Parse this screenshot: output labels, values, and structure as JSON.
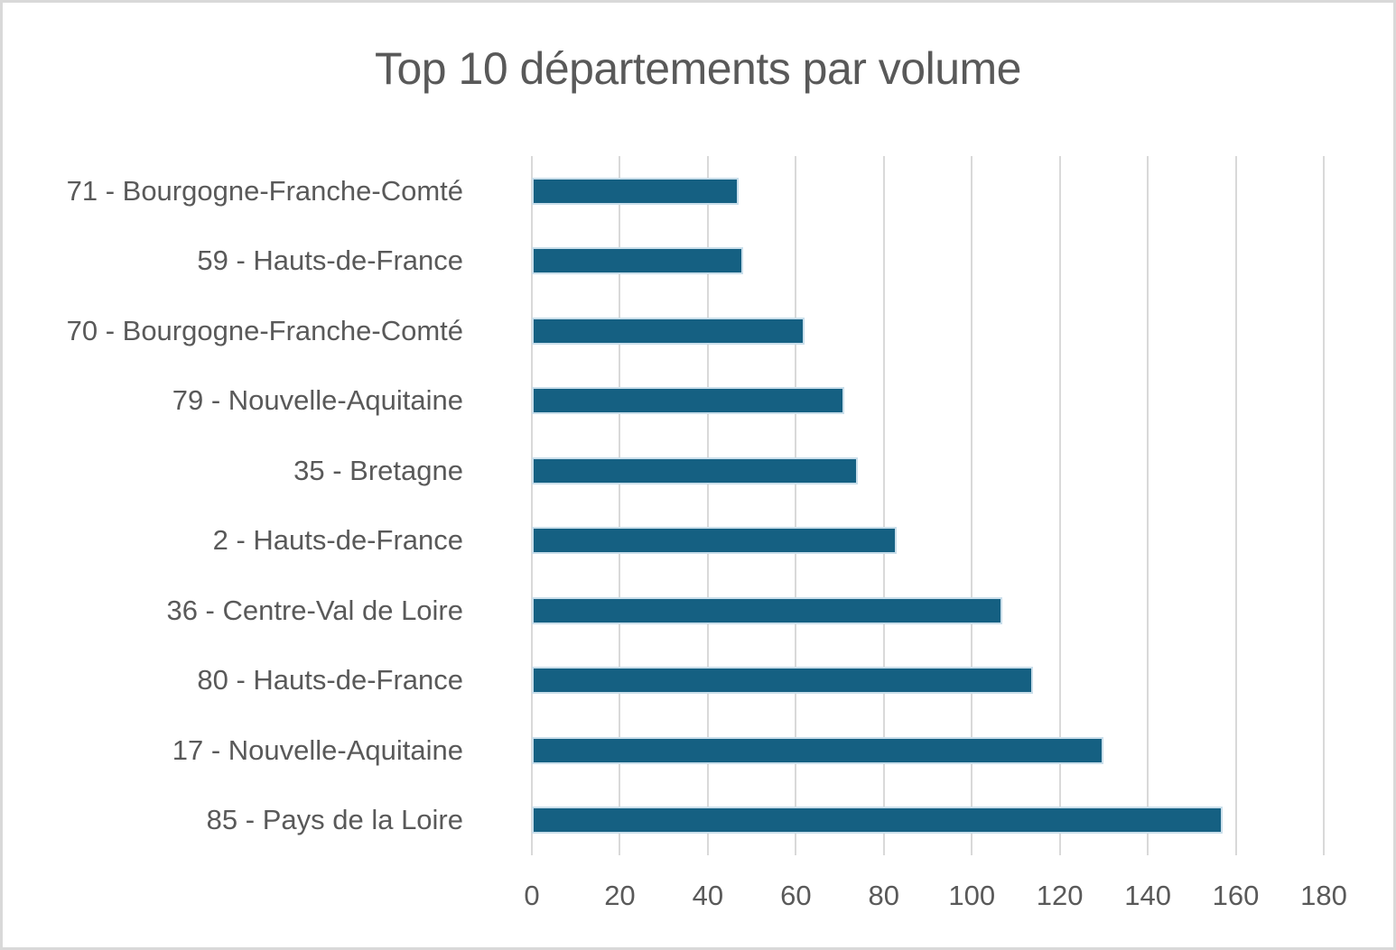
{
  "chart_data": {
    "type": "bar",
    "orientation": "horizontal",
    "title": "Top 10 départements par volume",
    "categories": [
      "71 - Bourgogne-Franche-Comté",
      "59 - Hauts-de-France",
      "70 - Bourgogne-Franche-Comté",
      "79 - Nouvelle-Aquitaine",
      "35 - Bretagne",
      "2 - Hauts-de-France",
      "36 - Centre-Val de Loire",
      "80 - Hauts-de-France",
      "17 - Nouvelle-Aquitaine",
      "85 - Pays de la Loire"
    ],
    "values": [
      47,
      48,
      62,
      71,
      74,
      83,
      107,
      114,
      130,
      157
    ],
    "xlim": [
      0,
      180
    ],
    "xticks": [
      0,
      20,
      40,
      60,
      80,
      100,
      120,
      140,
      160,
      180
    ],
    "grid": true,
    "legend": "none",
    "colors": {
      "bar_fill": "#156082",
      "bar_edge": "#c9deea",
      "gridline": "#d9d9d9",
      "text": "#595959",
      "frame_border": "#d9d9d9",
      "background": "#ffffff"
    }
  }
}
